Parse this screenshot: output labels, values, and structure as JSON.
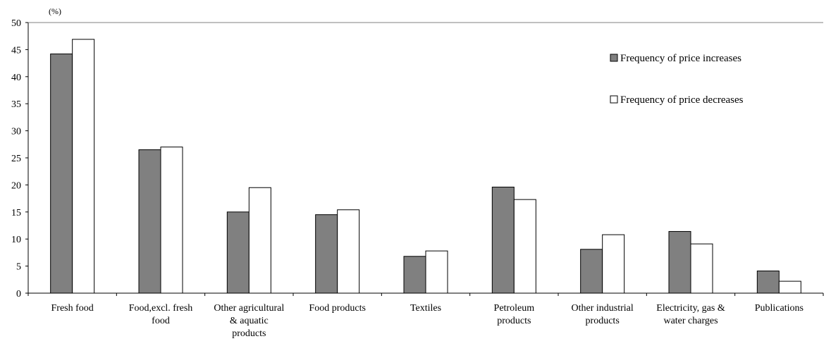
{
  "chart_data": {
    "type": "bar",
    "unit_label": "(%)",
    "categories": [
      [
        "Fresh food"
      ],
      [
        "Food,excl. fresh",
        "food"
      ],
      [
        "Other agricultural",
        "& aquatic",
        "products"
      ],
      [
        "Food products"
      ],
      [
        "Textiles"
      ],
      [
        "Petroleum",
        "products"
      ],
      [
        "Other industrial",
        "products"
      ],
      [
        "Electricity, gas &",
        "water charges"
      ],
      [
        "Publications"
      ]
    ],
    "series": [
      {
        "name": "Frequency of price increases",
        "color": "#808080",
        "values": [
          44.2,
          26.5,
          15.0,
          14.5,
          6.8,
          19.6,
          8.1,
          11.4,
          4.1
        ]
      },
      {
        "name": "Frequency of price decreases",
        "color": "#ffffff",
        "values": [
          46.9,
          27.0,
          19.5,
          15.4,
          7.8,
          17.3,
          10.8,
          9.1,
          2.2
        ]
      }
    ],
    "ylim": [
      0,
      50
    ],
    "yticks": [
      0,
      5,
      10,
      15,
      20,
      25,
      30,
      35,
      40,
      45,
      50
    ],
    "grid": false,
    "legend_position": "top-right"
  }
}
